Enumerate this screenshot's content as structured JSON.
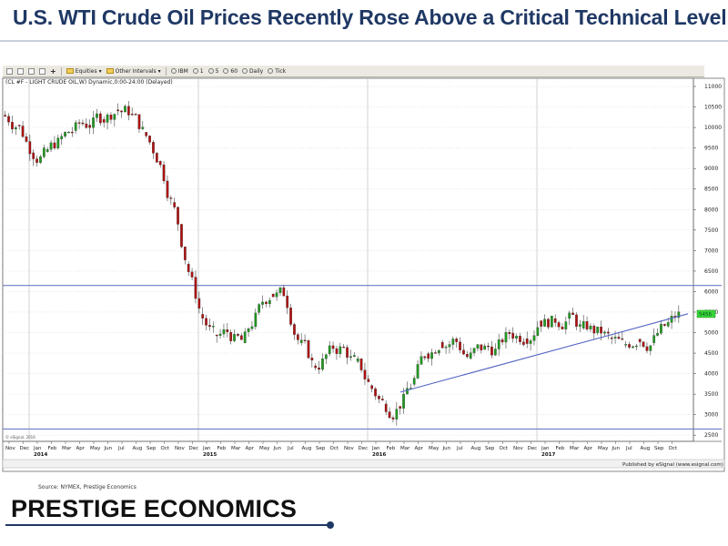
{
  "page": {
    "title": "U.S. WTI Crude Oil Prices Recently Rose Above a Critical Technical Level",
    "source": "Source: NYMEX, Prestige Economics",
    "brand": "PRESTIGE ECONOMICS"
  },
  "toolbar": {
    "equities_label": "Equities",
    "other_intervals_label": "Other Intervals",
    "ibm_label": "IBM",
    "one_label": "1",
    "five_label": "5",
    "sixty_label": "60",
    "daily_label": "Daily",
    "tick_label": "Tick"
  },
  "chart_data": {
    "type": "candlestick",
    "header": "(CL #F - LIGHT CRUDE OIL,W) Dynamic,0:00-24:00 (Delayed)",
    "published_by": "Published by eSignal (www.esignal.com)",
    "watermark": "© eSignal, 2016",
    "ylim": [
      2350,
      11200
    ],
    "yticks": [
      2500,
      3000,
      3500,
      4000,
      4500,
      5000,
      5500,
      6000,
      6500,
      7000,
      7500,
      8000,
      8500,
      9000,
      9500,
      10000,
      10500,
      11000
    ],
    "last_price": 5456,
    "horizontal_lines": [
      6150,
      2650
    ],
    "trendline": {
      "start": [
        "2016-03",
        3550
      ],
      "end": [
        "2017-11",
        5460
      ]
    },
    "x_months": [
      "Nov",
      "Dec",
      "Jan",
      "Feb",
      "Mar",
      "Apr",
      "May",
      "Jun",
      "Jul",
      "Aug",
      "Sep",
      "Oct",
      "Nov",
      "Dec",
      "Jan",
      "Feb",
      "Mar",
      "Apr",
      "May",
      "Jun",
      "Jul",
      "Aug",
      "Sep",
      "Oct",
      "Nov",
      "Dec",
      "Jan",
      "Feb",
      "Mar",
      "Apr",
      "May",
      "Jun",
      "Jul",
      "Aug",
      "Sep",
      "Oct",
      "Nov",
      "Dec",
      "Jan",
      "Feb",
      "Mar",
      "Apr",
      "May",
      "Jun",
      "Jul",
      "Aug",
      "Sep",
      "Oct"
    ],
    "year_labels": [
      {
        "label": "2014",
        "month_index": 2
      },
      {
        "label": "2015",
        "month_index": 14
      },
      {
        "label": "2016",
        "month_index": 26
      },
      {
        "label": "2017",
        "month_index": 38
      }
    ],
    "monthly_closes": [
      10100,
      9400,
      9350,
      9700,
      9950,
      10100,
      10250,
      10500,
      10350,
      9800,
      9200,
      8100,
      6600,
      5350,
      4800,
      5000,
      4700,
      5500,
      6050,
      5900,
      4700,
      4100,
      4500,
      4650,
      4200,
      3650,
      3200,
      3250,
      3800,
      4550,
      4900,
      4850,
      4350,
      4600,
      4600,
      5000,
      4950,
      5400,
      5300,
      5400,
      5050,
      5000,
      4800,
      4600,
      4950,
      4800,
      5150,
      5450
    ],
    "colors": {
      "up": "#1f9b1f",
      "down": "#b01010",
      "levels": "#6f7cc7",
      "trend": "#5466c3"
    }
  }
}
